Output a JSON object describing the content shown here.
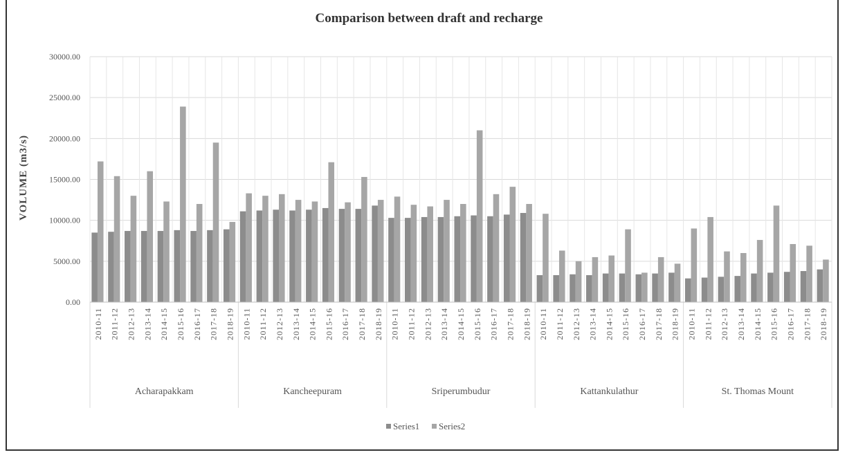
{
  "chart_data": {
    "type": "bar",
    "title": "Comparison between draft and recharge",
    "ylabel": "VOLUME (m3/s)",
    "xlabel": "",
    "ylim": [
      0,
      30000
    ],
    "yticks": [
      "0.00",
      "5000.00",
      "10000.00",
      "15000.00",
      "20000.00",
      "25000.00",
      "30000.00"
    ],
    "grid": true,
    "legend": "bottom",
    "groups": [
      {
        "name": "Acharapakkam",
        "categories": [
          "2010-11",
          "2011-12",
          "2012-13",
          "2013-14",
          "2014-15",
          "2015-16",
          "2016-17",
          "2017-18",
          "2018-19"
        ]
      },
      {
        "name": "Kancheepuram",
        "categories": [
          "2010-11",
          "2011-12",
          "2012-13",
          "2013-14",
          "2014-15",
          "2015-16",
          "2016-17",
          "2017-18",
          "2018-19"
        ]
      },
      {
        "name": "Sriperumbudur",
        "categories": [
          "2010-11",
          "2011-12",
          "2012-13",
          "2013-14",
          "2014-15",
          "2015-16",
          "2016-17",
          "2017-18",
          "2018-19"
        ]
      },
      {
        "name": "Kattankulathur",
        "categories": [
          "2010-11",
          "2011-12",
          "2012-13",
          "2013-14",
          "2014-15",
          "2015-16",
          "2016-17",
          "2017-18",
          "2018-19"
        ]
      },
      {
        "name": "St. Thomas Mount",
        "categories": [
          "2010-11",
          "2011-12",
          "2012-13",
          "2013-14",
          "2014-15",
          "2015-16",
          "2016-17",
          "2017-18",
          "2018-19"
        ]
      }
    ],
    "series": [
      {
        "name": "Series1",
        "color": "#8c8c8c",
        "values": [
          8500,
          8600,
          8700,
          8700,
          8700,
          8800,
          8700,
          8800,
          8900,
          11100,
          11200,
          11300,
          11200,
          11300,
          11500,
          11400,
          11400,
          11800,
          10300,
          10300,
          10400,
          10400,
          10500,
          10600,
          10500,
          10700,
          10900,
          3300,
          3300,
          3400,
          3300,
          3500,
          3500,
          3400,
          3500,
          3600,
          2900,
          3000,
          3100,
          3200,
          3500,
          3600,
          3700,
          3800,
          4000
        ]
      },
      {
        "name": "Series2",
        "color": "#a6a6a6",
        "values": [
          17200,
          15400,
          13000,
          16000,
          12300,
          23900,
          12000,
          19500,
          9800,
          13300,
          13000,
          13200,
          12500,
          12300,
          17100,
          12200,
          15300,
          12500,
          12900,
          11900,
          11700,
          12500,
          12000,
          21000,
          13200,
          14100,
          12000,
          10800,
          6300,
          5000,
          5500,
          5700,
          8900,
          3600,
          5500,
          4700,
          9000,
          10400,
          6200,
          6000,
          7600,
          11800,
          7100,
          6900,
          5200
        ]
      }
    ]
  }
}
